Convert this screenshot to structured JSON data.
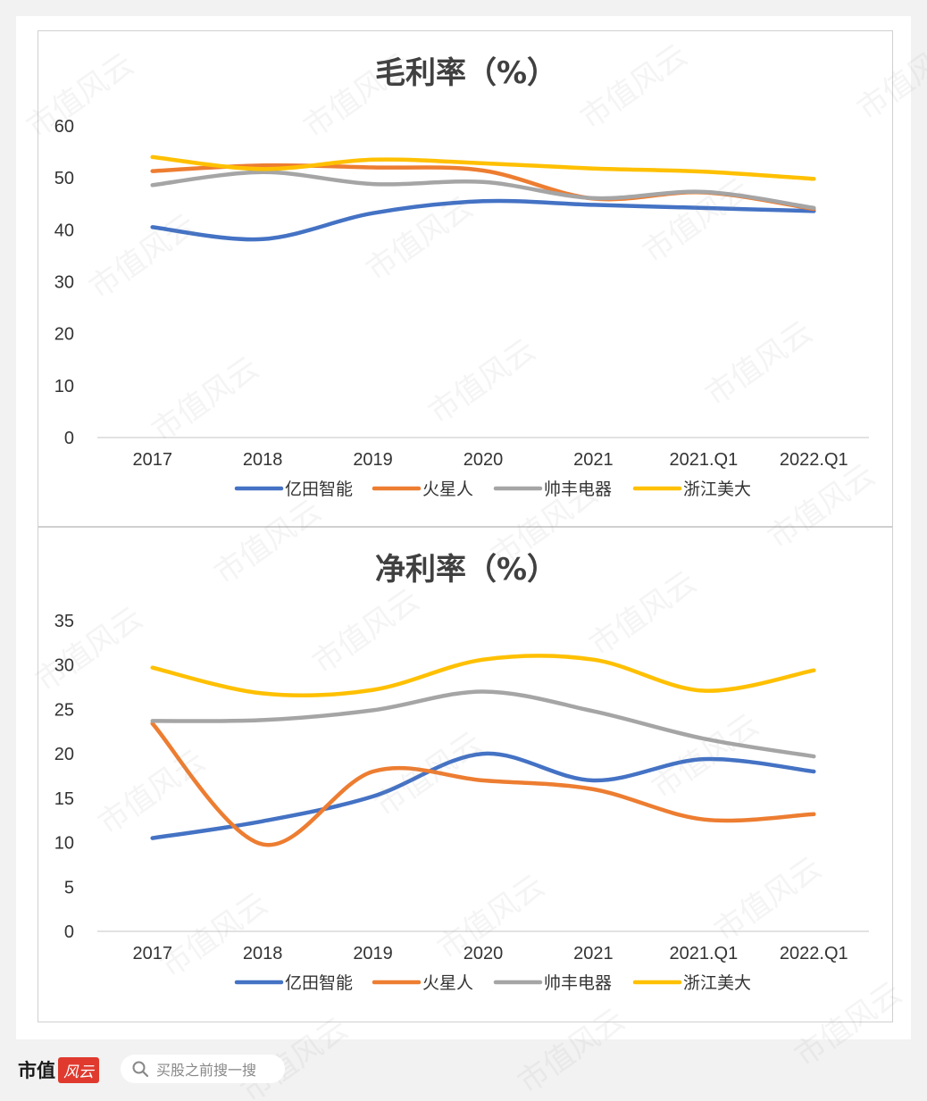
{
  "footer": {
    "brand_text": "市值",
    "brand_seal": "风云",
    "search_placeholder": "买股之前搜一搜",
    "search_icon": "search-icon"
  },
  "watermark": "市值风云",
  "chart_data": [
    {
      "type": "line",
      "title": "毛利率（%）",
      "categories": [
        "2017",
        "2018",
        "2019",
        "2020",
        "2021",
        "2021.Q1",
        "2022.Q1"
      ],
      "ylim": [
        0,
        60
      ],
      "yticks": [
        0,
        10,
        20,
        30,
        40,
        50,
        60
      ],
      "grid": false,
      "smooth": true,
      "legend_position": "bottom",
      "series": [
        {
          "name": "亿田智能",
          "color": "#4472c4",
          "values": [
            40.5,
            38.2,
            43.2,
            45.5,
            44.8,
            44.2,
            43.6
          ]
        },
        {
          "name": "火星人",
          "color": "#ed7d31",
          "values": [
            51.3,
            52.4,
            52.0,
            51.4,
            46.0,
            47.2,
            44.0
          ]
        },
        {
          "name": "帅丰电器",
          "color": "#a5a5a5",
          "values": [
            48.6,
            51.1,
            48.8,
            49.2,
            46.1,
            47.3,
            44.2
          ]
        },
        {
          "name": "浙江美大",
          "color": "#ffc000",
          "values": [
            54.0,
            51.7,
            53.5,
            52.8,
            51.8,
            51.2,
            49.8
          ]
        }
      ]
    },
    {
      "type": "line",
      "title": "净利率（%）",
      "categories": [
        "2017",
        "2018",
        "2019",
        "2020",
        "2021",
        "2021.Q1",
        "2022.Q1"
      ],
      "ylim": [
        0,
        35
      ],
      "yticks": [
        0,
        5,
        10,
        15,
        20,
        25,
        30,
        35
      ],
      "grid": false,
      "smooth": true,
      "legend_position": "bottom",
      "series": [
        {
          "name": "亿田智能",
          "color": "#4472c4",
          "values": [
            10.5,
            12.4,
            15.2,
            20.0,
            17.0,
            19.4,
            18.0
          ]
        },
        {
          "name": "火星人",
          "color": "#ed7d31",
          "values": [
            23.4,
            9.8,
            18.0,
            17.0,
            16.0,
            12.6,
            13.2
          ]
        },
        {
          "name": "帅丰电器",
          "color": "#a5a5a5",
          "values": [
            23.7,
            23.8,
            24.9,
            27.0,
            24.8,
            21.7,
            19.7
          ]
        },
        {
          "name": "浙江美大",
          "color": "#ffc000",
          "values": [
            29.7,
            26.8,
            27.2,
            30.6,
            30.6,
            27.1,
            29.4
          ]
        }
      ]
    }
  ]
}
